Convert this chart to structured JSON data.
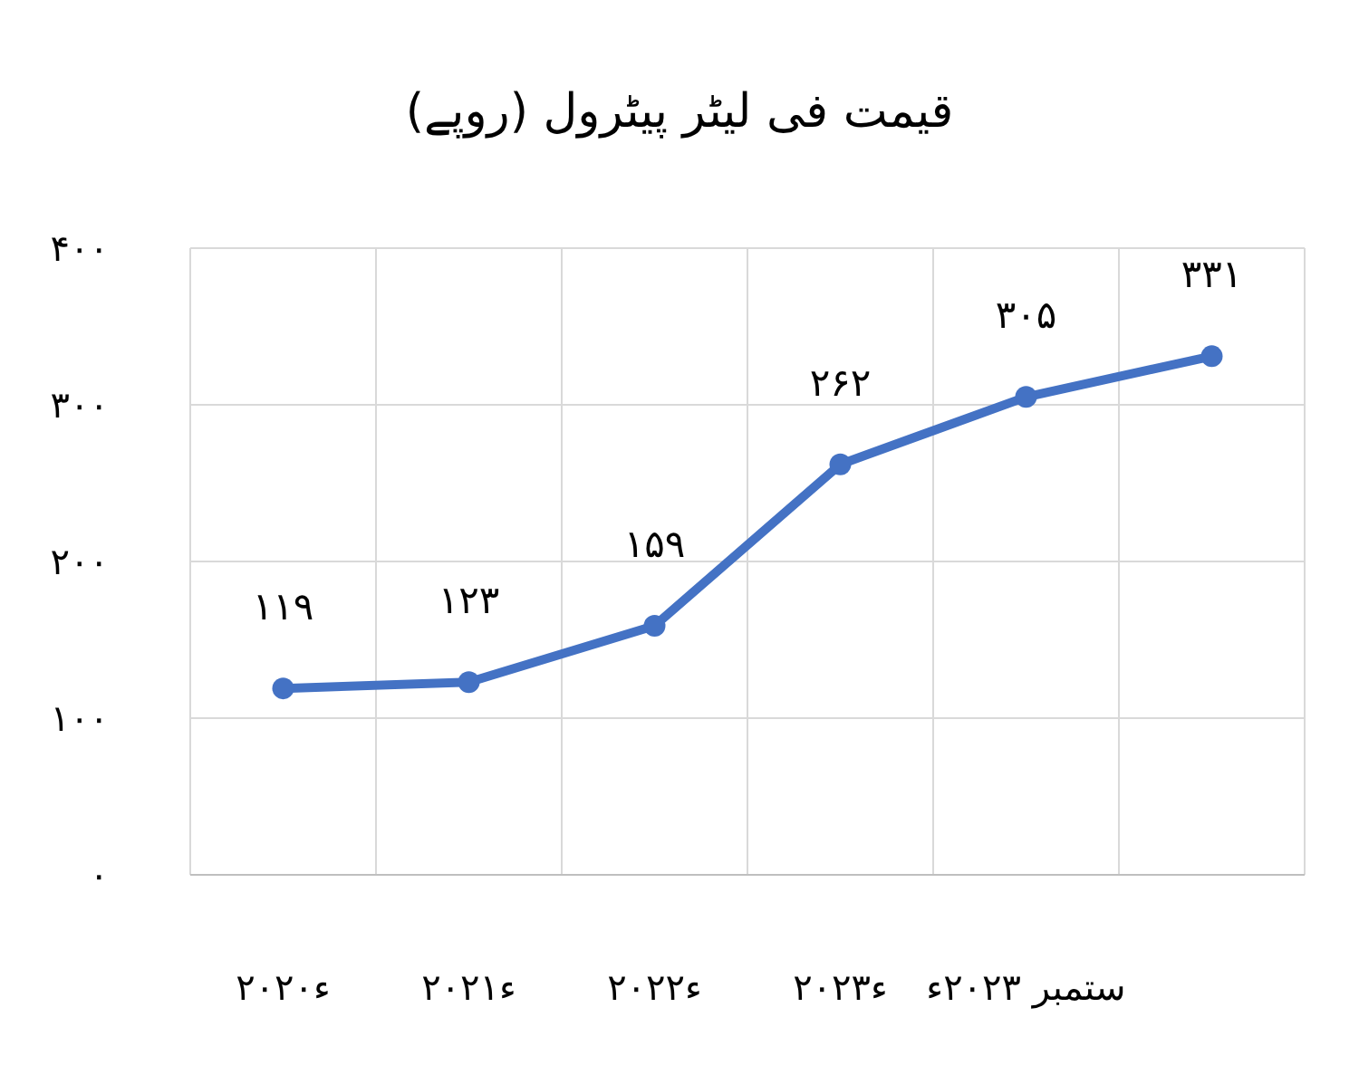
{
  "chart_data": {
    "type": "line",
    "title": "قیمت فی لیٹر پیٹرول (روپے)",
    "categories": [
      "۲۰۲۰ء",
      "۲۰۲۱ء",
      "۲۰۲۲ء",
      "۲۰۲۳ء",
      "ستمبر ۲۰۲۳ء",
      null
    ],
    "series": [
      {
        "color": "#4472c4",
        "values": [
          119,
          123,
          159,
          262,
          305,
          331
        ]
      }
    ],
    "value_labels": [
      "۱۱۹",
      "۱۲۳",
      "۱۵۹",
      "۲۶۲",
      "۳۰۵",
      "۳۳۱"
    ],
    "ylim": [
      0,
      400
    ],
    "yticks": [
      {
        "value": 0,
        "label": "۰"
      },
      {
        "value": 100,
        "label": "۱۰۰"
      },
      {
        "value": 200,
        "label": "۲۰۰"
      },
      {
        "value": 300,
        "label": "۳۰۰"
      },
      {
        "value": 400,
        "label": "۴۰۰"
      }
    ],
    "grid": true,
    "marker": "circle",
    "line_style": "solid"
  }
}
